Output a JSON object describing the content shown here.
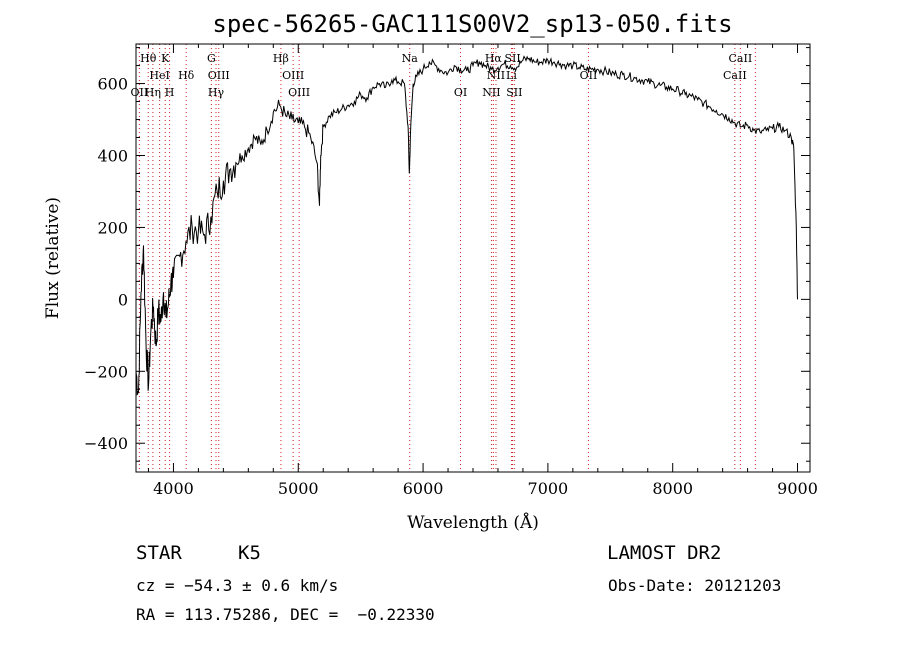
{
  "chart_data": {
    "type": "line",
    "title": "spec-56265-GAC111S00V2_sp13-050.fits",
    "xlabel": "Wavelength (Å)",
    "ylabel": "Flux (relative)",
    "xlim": [
      3700,
      9100
    ],
    "ylim": [
      -480,
      710
    ],
    "xticks": [
      4000,
      5000,
      6000,
      7000,
      8000,
      9000
    ],
    "yticks": [
      -400,
      -200,
      0,
      200,
      400,
      600
    ],
    "series": [
      {
        "x": [
          3700,
          3720,
          3740,
          3760,
          3780,
          3800,
          3820,
          3840,
          3860,
          3880,
          3900,
          3920,
          3940,
          3960,
          3980,
          4000,
          4050,
          4100,
          4150,
          4200,
          4250,
          4300,
          4350,
          4400,
          4450,
          4500,
          4550,
          4600,
          4650,
          4700,
          4750,
          4800,
          4850,
          4900,
          4950,
          5000,
          5050,
          5100,
          5150,
          5170,
          5180,
          5200,
          5250,
          5300,
          5350,
          5400,
          5450,
          5500,
          5550,
          5600,
          5650,
          5700,
          5750,
          5800,
          5850,
          5880,
          5890,
          5900,
          5920,
          5950,
          6000,
          6050,
          6100,
          6150,
          6200,
          6250,
          6300,
          6350,
          6400,
          6450,
          6500,
          6550,
          6600,
          6650,
          6700,
          6750,
          6800,
          6850,
          6900,
          6950,
          7000,
          7050,
          7100,
          7150,
          7200,
          7250,
          7300,
          7350,
          7400,
          7450,
          7500,
          7550,
          7600,
          7650,
          7700,
          7750,
          7800,
          7850,
          7900,
          7950,
          8000,
          8050,
          8100,
          8150,
          8200,
          8250,
          8300,
          8350,
          8400,
          8450,
          8500,
          8550,
          8600,
          8650,
          8700,
          8750,
          8800,
          8850,
          8900,
          8950,
          8970,
          8990,
          9000
        ],
        "values": [
          -200,
          -260,
          20,
          150,
          -120,
          -240,
          -80,
          -20,
          -130,
          -30,
          -60,
          20,
          -50,
          -10,
          50,
          60,
          120,
          160,
          200,
          190,
          180,
          230,
          300,
          330,
          360,
          380,
          400,
          420,
          450,
          430,
          470,
          520,
          540,
          510,
          500,
          490,
          480,
          450,
          380,
          260,
          400,
          480,
          510,
          520,
          530,
          540,
          550,
          570,
          560,
          590,
          600,
          590,
          610,
          605,
          600,
          480,
          350,
          470,
          600,
          620,
          640,
          660,
          650,
          635,
          630,
          650,
          640,
          635,
          650,
          660,
          650,
          640,
          645,
          655,
          650,
          645,
          665,
          670,
          660,
          660,
          665,
          660,
          655,
          650,
          650,
          645,
          640,
          640,
          640,
          635,
          630,
          625,
          625,
          620,
          615,
          610,
          605,
          600,
          595,
          590,
          585,
          580,
          570,
          565,
          555,
          545,
          535,
          525,
          515,
          505,
          490,
          480,
          485,
          470,
          465,
          470,
          475,
          480,
          470,
          450,
          420,
          200,
          0
        ]
      }
    ],
    "line_labels": [
      {
        "text": "Hθ",
        "x": 3798,
        "row": 0
      },
      {
        "text": "K",
        "x": 3934,
        "row": 0
      },
      {
        "text": "HeI",
        "x": 3889,
        "row": 1
      },
      {
        "text": "Hδ",
        "x": 4102,
        "row": 1
      },
      {
        "text": "OII",
        "x": 3727,
        "row": 2
      },
      {
        "text": "Hη",
        "x": 3835,
        "row": 2
      },
      {
        "text": "H",
        "x": 3969,
        "row": 2
      },
      {
        "text": "G",
        "x": 4304,
        "row": 0
      },
      {
        "text": "OIII",
        "x": 4363,
        "row": 1
      },
      {
        "text": "Hγ",
        "x": 4341,
        "row": 2
      },
      {
        "text": "Hβ",
        "x": 4861,
        "row": 0
      },
      {
        "text": "OIII",
        "x": 4959,
        "row": 1
      },
      {
        "text": "OIII",
        "x": 5007,
        "row": 2
      },
      {
        "text": "Na",
        "x": 5893,
        "row": 0
      },
      {
        "text": "OI",
        "x": 6300,
        "row": 2
      },
      {
        "text": "Hα",
        "x": 6563,
        "row": 0
      },
      {
        "text": "SII",
        "x": 6717,
        "row": 0
      },
      {
        "text": "NII",
        "x": 6584,
        "row": 1
      },
      {
        "text": "Li",
        "x": 6708,
        "row": 1
      },
      {
        "text": "NII",
        "x": 6548,
        "row": 2
      },
      {
        "text": "SII",
        "x": 6731,
        "row": 2
      },
      {
        "text": "OII",
        "x": 7325,
        "row": 1
      },
      {
        "text": "CaII",
        "x": 8542,
        "row": 0
      },
      {
        "text": "CaII",
        "x": 8498,
        "row": 1
      }
    ],
    "line_markers": [
      3727,
      3798,
      3835,
      3889,
      3934,
      3969,
      4102,
      4304,
      4341,
      4363,
      4861,
      4959,
      5007,
      5893,
      6300,
      6548,
      6563,
      6584,
      6708,
      6717,
      6731,
      7325,
      8498,
      8542,
      8662
    ]
  },
  "info": {
    "object_class": "STAR",
    "subclass": "K5",
    "survey": "LAMOST DR2",
    "cz": "cz = −54.3 ± 0.6 km/s",
    "obs_date": "Obs-Date: 20121203",
    "coords": "RA = 113.75286, DEC =  −0.22330"
  }
}
